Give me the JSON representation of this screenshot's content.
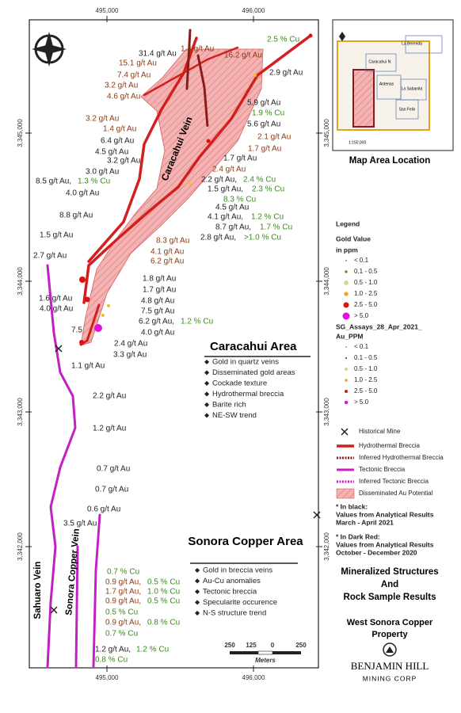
{
  "map": {
    "eastings": [
      "495,000",
      "496,000"
    ],
    "northings": [
      "3,345,000",
      "3,344,000",
      "3,343,000",
      "3,342,000"
    ],
    "veins": [
      "Caracahui Vein",
      "Sahuaro Vein",
      "Sonora Copper Vein"
    ],
    "labels": [
      {
        "text": "2.5 % Cu",
        "color": "#3a8a1a"
      },
      {
        "text": "31.4 g/t Au",
        "color": "#222222"
      },
      {
        "text": "1.4 g/t Au",
        "color": "#8b3a0f"
      },
      {
        "text": "16.2 g/t Au",
        "color": "#8b3a0f"
      },
      {
        "text": "15.1 g/t Au",
        "color": "#8b3a0f"
      },
      {
        "text": "2.9 g/t Au",
        "color": "#222222"
      },
      {
        "text": "7.4 g/t Au",
        "color": "#8b3a0f"
      },
      {
        "text": "3.2 g/t Au",
        "color": "#8b3a0f"
      },
      {
        "text": "4.6 g/t Au",
        "color": "#8b3a0f"
      },
      {
        "text": "5.9 g/t Au",
        "color": "#222222"
      },
      {
        "text": "3.2 g/t Au",
        "color": "#8b3a0f"
      },
      {
        "text": "1.9 % Cu",
        "color": "#3a8a1a"
      },
      {
        "text": "5.6 g/t Au",
        "color": "#222222"
      },
      {
        "text": "1.4 g/t Au",
        "color": "#8b3a0f"
      },
      {
        "text": "6.4 g/t Au",
        "color": "#222222"
      },
      {
        "text": "2.1 g/t Au",
        "color": "#8b3a0f"
      },
      {
        "text": "4.5 g/t Au",
        "color": "#222222"
      },
      {
        "text": "1.7 g/t Au",
        "color": "#8b3a0f"
      },
      {
        "text": "3.2 g/t Au",
        "color": "#222222"
      },
      {
        "text": "1.7 g/t Au",
        "color": "#222222"
      },
      {
        "text": "3.0 g/t Au",
        "color": "#222222"
      },
      {
        "text": "2.4 g/t Au",
        "color": "#8b3a0f"
      },
      {
        "text": "8.5 g/t Au,",
        "color": "#222222"
      },
      {
        "text": "1.3 % Cu",
        "color": "#3a8a1a"
      },
      {
        "text": "2.2 g/t Au,",
        "color": "#222222"
      },
      {
        "text": "2.4 % Cu",
        "color": "#3a8a1a"
      },
      {
        "text": "1.5 g/t Au,",
        "color": "#222222"
      },
      {
        "text": "2.3 % Cu",
        "color": "#3a8a1a"
      },
      {
        "text": "4.0 g/t Au",
        "color": "#222222"
      },
      {
        "text": "8.3 % Cu",
        "color": "#3a8a1a"
      },
      {
        "text": "4.5 g/t Au",
        "color": "#222222"
      },
      {
        "text": "8.8 g/t Au",
        "color": "#222222"
      },
      {
        "text": "4.1 g/t Au,",
        "color": "#222222"
      },
      {
        "text": "1.2 % Cu",
        "color": "#3a8a1a"
      },
      {
        "text": "8.7 g/t Au,",
        "color": "#222222"
      },
      {
        "text": "1.7 % Cu",
        "color": "#3a8a1a"
      },
      {
        "text": "1.5 g/t Au",
        "color": "#222222"
      },
      {
        "text": "2.8 g/t Au,",
        "color": "#222222"
      },
      {
        "text": ">1.0 % Cu",
        "color": "#3a8a1a"
      },
      {
        "text": "8.3 g/t Au",
        "color": "#8b3a0f"
      },
      {
        "text": "4.1 g/t Au",
        "color": "#8b3a0f"
      },
      {
        "text": "6.2 g/t Au",
        "color": "#8b3a0f"
      },
      {
        "text": "2.7 g/t Au",
        "color": "#222222"
      },
      {
        "text": "1.8 g/t Au",
        "color": "#222222"
      },
      {
        "text": "1.7 g/t Au",
        "color": "#222222"
      },
      {
        "text": "1.6 g/t Au",
        "color": "#222222"
      },
      {
        "text": "4.8 g/t Au",
        "color": "#222222"
      },
      {
        "text": "4.0 g/t Au",
        "color": "#222222"
      },
      {
        "text": "7.5 g/t Au",
        "color": "#222222"
      },
      {
        "text": "6.2 g/t Au,",
        "color": "#222222"
      },
      {
        "text": "1.2 % Cu",
        "color": "#3a8a1a"
      },
      {
        "text": "4.0 g/t Au",
        "color": "#222222"
      },
      {
        "text": "2.4 g/t Au",
        "color": "#222222"
      },
      {
        "text": "3.3 g/t Au",
        "color": "#222222"
      },
      {
        "text": "1.1 g/t Au",
        "color": "#222222"
      },
      {
        "text": "2.2 g/t Au",
        "color": "#222222"
      },
      {
        "text": "1.2 g/t Au",
        "color": "#222222"
      },
      {
        "text": "0.7 g/t Au",
        "color": "#222222"
      },
      {
        "text": "0.7 g/t Au",
        "color": "#222222"
      },
      {
        "text": "0.6 g/t Au",
        "color": "#222222"
      },
      {
        "text": "3.5 g/t Au",
        "color": "#222222"
      },
      {
        "text": "0.7 % Cu",
        "color": "#3a8a1a"
      },
      {
        "text": "0.9 g/t Au,",
        "color": "#8b3a0f"
      },
      {
        "text": "0.5 % Cu",
        "color": "#3a8a1a"
      },
      {
        "text": "1.7 g/t Au,",
        "color": "#8b3a0f"
      },
      {
        "text": "1.0 % Cu",
        "color": "#3a8a1a"
      },
      {
        "text": "0.9 g/t Au,",
        "color": "#8b3a0f"
      },
      {
        "text": "0.5 % Cu",
        "color": "#3a8a1a"
      },
      {
        "text": "0.5 % Cu",
        "color": "#3a8a1a"
      },
      {
        "text": "0.9 g/t Au,",
        "color": "#8b3a0f"
      },
      {
        "text": "0.8 % Cu",
        "color": "#3a8a1a"
      },
      {
        "text": "0.7 % Cu",
        "color": "#3a8a1a"
      },
      {
        "text": "1.2 g/t Au,",
        "color": "#222222"
      },
      {
        "text": "1.2 % Cu",
        "color": "#3a8a1a"
      },
      {
        "text": "0.8 % Cu",
        "color": "#3a8a1a"
      },
      {
        "text": "7.5",
        "color": "#222222"
      }
    ],
    "caracahui_area": {
      "title": "Caracahui Area",
      "items": [
        "Gold in quartz veins",
        "Disseminated gold areas",
        "Cockade texture",
        "Hydrothermal breccia",
        "Barite rich",
        "NE-SW trend"
      ]
    },
    "sonora_area": {
      "title": "Sonora Copper Area",
      "items": [
        "Gold in breccia veins",
        "Au-Cu anomalies",
        "Tectonic breccia",
        "Specularite occurence",
        "N-S structure trend"
      ]
    },
    "scale": {
      "ticks": [
        "250",
        "125",
        "0",
        "250"
      ],
      "unit": "Meters"
    },
    "inset": {
      "places": [
        "La Berenda",
        "Caracahui N.",
        "Antenas",
        "La Sabanita",
        "San Felix"
      ],
      "scale": "1:150,000",
      "caption": "Map Area Location"
    },
    "legend": {
      "title": "Legend",
      "gold_title": "Gold Value",
      "gold_unit": "in ppm",
      "gold_classes": [
        "< 0.1",
        "0.1 - 0.5",
        "0.5 - 1.0",
        "1.0 - 2.5",
        "2.5 - 5.0",
        "> 5.0"
      ],
      "assay_title": "SG_Assays_28_Apr_2021_",
      "assay_unit": "Au_PPM",
      "assay_classes": [
        "< 0.1",
        "0.1 - 0.5",
        "0.5 - 1.0",
        "1.0 - 2.5",
        "2.5 - 5.0",
        "> 5.0"
      ],
      "lines": [
        "Historical Mine",
        "Hydrothermal Breccia",
        "Inferred Hydrothermal Breccia",
        "Tectonic Breccia",
        "Inferred Tectonic Breccia",
        "Disseminated Au Potential"
      ],
      "note_black": [
        "* In black:",
        "Values from Analytical Results",
        "March - April 2021"
      ],
      "note_red": [
        "* In Dark Red:",
        "Values from Analytical Results",
        "October - December 2020"
      ]
    },
    "map_title": [
      "Mineralized Structures",
      "And",
      "Rock Sample Results"
    ],
    "property": [
      "West Sonora Copper",
      "Property"
    ],
    "company": [
      "BENJAMIN HILL",
      "MINING CORP"
    ]
  }
}
